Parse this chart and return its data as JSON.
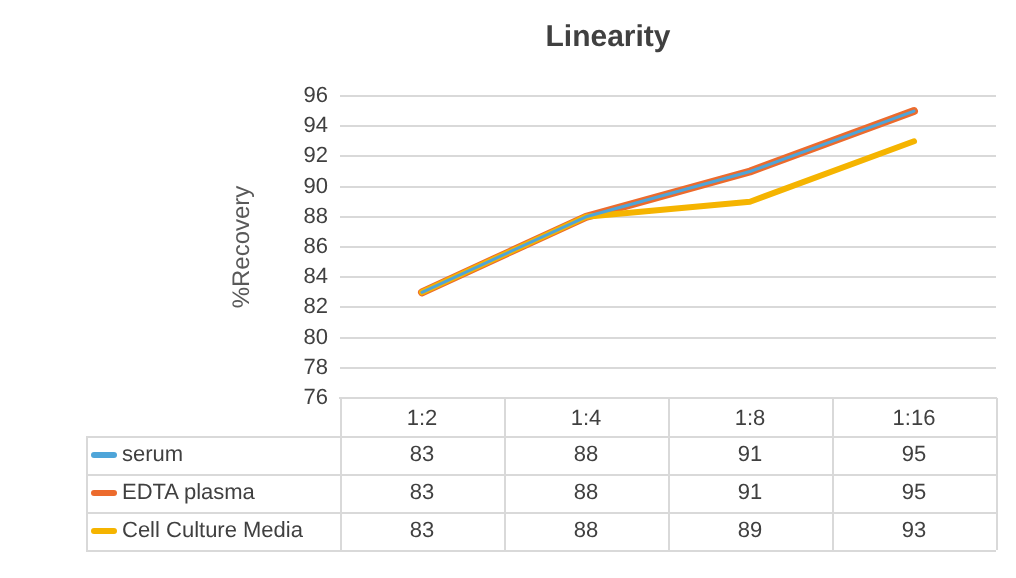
{
  "chart_data": {
    "type": "line",
    "title": "Linearity",
    "ylabel": "%Recovery",
    "categories": [
      "1:2",
      "1:4",
      "1:8",
      "1:16"
    ],
    "series": [
      {
        "name": "serum",
        "color": "#4ea5d9",
        "values": [
          83,
          88,
          91,
          95
        ]
      },
      {
        "name": "EDTA plasma",
        "color": "#ec6b2d",
        "values": [
          83,
          88,
          91,
          95
        ]
      },
      {
        "name": "Cell Culture Media",
        "color": "#f5b400",
        "values": [
          83,
          88,
          89,
          93
        ]
      }
    ],
    "ylim": [
      76,
      96
    ],
    "yticks": [
      76,
      78,
      80,
      82,
      84,
      86,
      88,
      90,
      92,
      94,
      96
    ],
    "grid": "y",
    "legend": "bottom",
    "data_labels": true,
    "marker": "none",
    "line_style": "solid"
  }
}
